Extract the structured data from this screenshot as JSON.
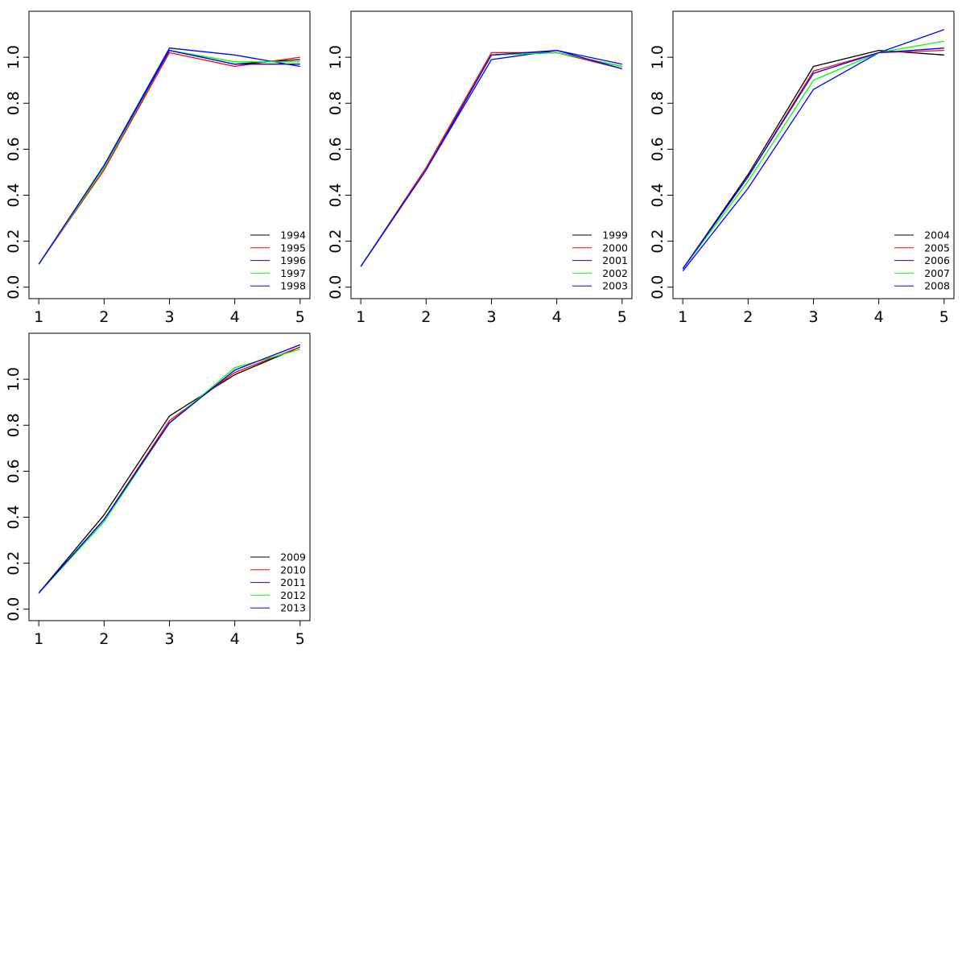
{
  "chart_data": [
    {
      "type": "line",
      "x": [
        1,
        2,
        3,
        4,
        5
      ],
      "xticks": [
        "1",
        "2",
        "3",
        "4",
        "5"
      ],
      "yticks": [
        "0.0",
        "0.2",
        "0.4",
        "0.6",
        "0.8",
        "1.0"
      ],
      "xlim": [
        0.85,
        5.15
      ],
      "ylim": [
        -0.05,
        1.2
      ],
      "legend_position": "bottom-right",
      "series": [
        {
          "name": "1994",
          "color": "#000000",
          "values": [
            0.1,
            0.52,
            1.03,
            0.97,
            0.99
          ]
        },
        {
          "name": "1995",
          "color": "#ff0000",
          "values": [
            0.1,
            0.51,
            1.02,
            0.96,
            1.0
          ]
        },
        {
          "name": "1996",
          "color": "#0000ff",
          "values": [
            0.1,
            0.53,
            1.04,
            1.01,
            0.96
          ]
        },
        {
          "name": "1997",
          "color": "#00ff00",
          "values": [
            0.1,
            0.52,
            1.03,
            0.98,
            0.98
          ]
        },
        {
          "name": "1998",
          "color": "#0000ff",
          "values": [
            0.1,
            0.53,
            1.03,
            0.97,
            0.97
          ]
        }
      ]
    },
    {
      "type": "line",
      "x": [
        1,
        2,
        3,
        4,
        5
      ],
      "xticks": [
        "1",
        "2",
        "3",
        "4",
        "5"
      ],
      "yticks": [
        "0.0",
        "0.2",
        "0.4",
        "0.6",
        "0.8",
        "1.0"
      ],
      "xlim": [
        0.85,
        5.15
      ],
      "ylim": [
        -0.05,
        1.2
      ],
      "legend_position": "bottom-right",
      "series": [
        {
          "name": "1999",
          "color": "#000000",
          "values": [
            0.09,
            0.51,
            1.01,
            1.02,
            0.96
          ]
        },
        {
          "name": "2000",
          "color": "#ff0000",
          "values": [
            0.09,
            0.52,
            1.02,
            1.02,
            0.95
          ]
        },
        {
          "name": "2001",
          "color": "#0000ff",
          "values": [
            0.09,
            0.51,
            0.99,
            1.03,
            0.97
          ]
        },
        {
          "name": "2002",
          "color": "#00ff00",
          "values": [
            0.09,
            0.51,
            1.01,
            1.02,
            0.96
          ]
        },
        {
          "name": "2003",
          "color": "#0000ff",
          "values": [
            0.09,
            0.51,
            1.01,
            1.03,
            0.95
          ]
        }
      ]
    },
    {
      "type": "line",
      "x": [
        1,
        2,
        3,
        4,
        5
      ],
      "xticks": [
        "1",
        "2",
        "3",
        "4",
        "5"
      ],
      "yticks": [
        "0.0",
        "0.2",
        "0.4",
        "0.6",
        "0.8",
        "1.0"
      ],
      "xlim": [
        0.85,
        5.15
      ],
      "ylim": [
        -0.05,
        1.2
      ],
      "legend_position": "bottom-right",
      "series": [
        {
          "name": "2004",
          "color": "#000000",
          "values": [
            0.08,
            0.49,
            0.96,
            1.03,
            1.01
          ]
        },
        {
          "name": "2005",
          "color": "#ff0000",
          "values": [
            0.08,
            0.48,
            0.94,
            1.02,
            1.03
          ]
        },
        {
          "name": "2006",
          "color": "#0000ff",
          "values": [
            0.07,
            0.43,
            0.86,
            1.02,
            1.12
          ]
        },
        {
          "name": "2007",
          "color": "#00ff00",
          "values": [
            0.08,
            0.46,
            0.9,
            1.02,
            1.07
          ]
        },
        {
          "name": "2008",
          "color": "#0000ff",
          "values": [
            0.08,
            0.48,
            0.93,
            1.02,
            1.04
          ]
        }
      ]
    },
    {
      "type": "line",
      "x": [
        1,
        2,
        3,
        4,
        5
      ],
      "xticks": [
        "1",
        "2",
        "3",
        "4",
        "5"
      ],
      "yticks": [
        "0.0",
        "0.2",
        "0.4",
        "0.6",
        "0.8",
        "1.0"
      ],
      "xlim": [
        0.85,
        5.15
      ],
      "ylim": [
        -0.05,
        1.2
      ],
      "legend_position": "bottom-right",
      "series": [
        {
          "name": "2009",
          "color": "#000000",
          "values": [
            0.07,
            0.41,
            0.84,
            1.02,
            1.14
          ]
        },
        {
          "name": "2010",
          "color": "#ff0000",
          "values": [
            0.07,
            0.39,
            0.82,
            1.03,
            1.14
          ]
        },
        {
          "name": "2011",
          "color": "#0000ff",
          "values": [
            0.07,
            0.39,
            0.81,
            1.04,
            1.15
          ]
        },
        {
          "name": "2012",
          "color": "#00ff00",
          "values": [
            0.07,
            0.38,
            0.81,
            1.05,
            1.13
          ]
        },
        {
          "name": "2013",
          "color": "#0000ff",
          "values": [
            0.07,
            0.39,
            0.81,
            1.04,
            1.15
          ]
        }
      ]
    }
  ]
}
